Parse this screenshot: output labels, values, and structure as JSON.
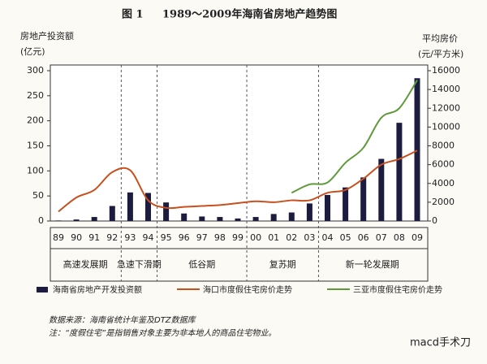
{
  "chart_data": {
    "type": "bar-line",
    "figure_label": "图 1",
    "title": "1989～2009年海南省房地产趋势图",
    "y_label": "房地产投资额",
    "y_unit": "(亿元)",
    "y2_label": "平均房价",
    "y2_unit": "(元/平方米)",
    "categories": [
      "89",
      "90",
      "91",
      "92",
      "93",
      "94",
      "95",
      "96",
      "97",
      "98",
      "99",
      "00",
      "01",
      "02",
      "03",
      "04",
      "05",
      "06",
      "07",
      "08",
      "09"
    ],
    "series": [
      {
        "name": "海南省房地产开发投资额",
        "kind": "bar",
        "color": "#1b1c3f",
        "values": [
          1,
          3,
          8,
          30,
          57,
          56,
          37,
          15,
          9,
          8,
          5,
          8,
          14,
          17,
          35,
          52,
          67,
          87,
          124,
          196,
          285
        ]
      },
      {
        "name": "海口市度假住宅房价走势",
        "kind": "line",
        "axis": "y2",
        "color": "#c8501e",
        "values": [
          1000,
          2500,
          3300,
          5200,
          5400,
          2200,
          1400,
          1500,
          1600,
          1700,
          1900,
          2100,
          2000,
          2200,
          2200,
          3000,
          3300,
          4500,
          6000,
          6600,
          7500
        ]
      },
      {
        "name": "三亚市度假住宅房价走势",
        "kind": "line",
        "axis": "y2",
        "color": "#5f9a3a",
        "values": [
          null,
          null,
          null,
          null,
          null,
          null,
          null,
          null,
          null,
          null,
          null,
          null,
          null,
          3000,
          3900,
          4100,
          6200,
          7800,
          11000,
          12000,
          15000
        ]
      }
    ],
    "ylim": [
      0,
      300
    ],
    "yticks": [
      0,
      50,
      100,
      150,
      200,
      250,
      300
    ],
    "y2lim": [
      0,
      16000
    ],
    "y2ticks": [
      0,
      2000,
      4000,
      6000,
      8000,
      10000,
      12000,
      14000,
      16000
    ],
    "phases": [
      {
        "label": "高速发展期",
        "from": "89",
        "to": "92"
      },
      {
        "label": "急速下滑期",
        "from": "93",
        "to": "94"
      },
      {
        "label": "低谷期",
        "from": "95",
        "to": "99"
      },
      {
        "label": "复苏期",
        "from": "00",
        "to": "03"
      },
      {
        "label": "新一轮发展期",
        "from": "04",
        "to": "09"
      }
    ],
    "legend": "bottom",
    "source": "数据来源：海南省统计年鉴及DTZ数据库",
    "note": "注：“度假住宅”是指销售对象主要为非本地人的商品住宅物业。",
    "watermark": "macd手术刀"
  }
}
